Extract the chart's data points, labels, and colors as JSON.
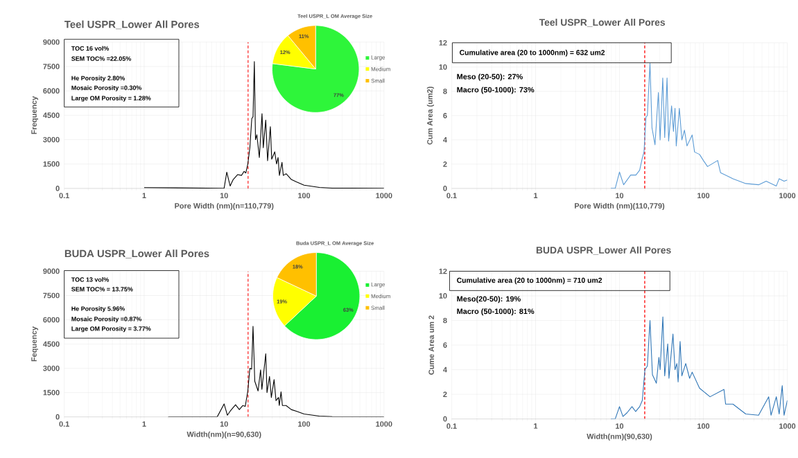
{
  "chart_data": [
    {
      "type": "line",
      "title": "Teel USPR_Lower All Pores",
      "xlabel": "Pore Width (nm)(n=110,779)",
      "ylabel": "Frequency",
      "log": "x",
      "grid": true,
      "xlim": [
        0.1,
        1000
      ],
      "xticks": [
        0.1,
        1,
        10,
        100,
        1000
      ],
      "ylim": [
        0,
        9000
      ],
      "yticks": [
        0,
        1500,
        3000,
        4500,
        6000,
        7500,
        9000
      ],
      "color": "#000000",
      "x": [
        1,
        9.5,
        10,
        10.8,
        11.9,
        13,
        14.8,
        16.5,
        17.8,
        18.7,
        19.8,
        21,
        22.2,
        23,
        23.9,
        24.7,
        25.7,
        27.6,
        29.8,
        30.9,
        33.2,
        35,
        37.9,
        39.4,
        43,
        45.3,
        47.3,
        49.2,
        53,
        55,
        59.9,
        69.3,
        80.3,
        100,
        156,
        225,
        1000
      ],
      "values": [
        50,
        10,
        0,
        1000,
        150,
        550,
        850,
        800,
        1050,
        950,
        1500,
        2500,
        4300,
        4400,
        7800,
        3000,
        3300,
        1900,
        4600,
        2500,
        4200,
        1700,
        3800,
        1800,
        2250,
        1500,
        1900,
        800,
        1600,
        800,
        900,
        550,
        400,
        200,
        60,
        20,
        0
      ],
      "ref_lines": [
        {
          "axis": "x",
          "value": 20,
          "color": "#ff0000",
          "line_style": "dashed"
        }
      ],
      "annotations": [
        "TOC 16 vol%",
        "SEM TOC% =22.05%",
        "He Porosity 2.80%",
        "Mosaic Porosity =0.30%",
        "Large OM Porosity = 1.28%"
      ]
    },
    {
      "type": "pie",
      "title": "Teel USPR_L OM Average Size",
      "categories": [
        "Large",
        "Medium",
        "Small"
      ],
      "values": [
        77,
        12,
        11
      ],
      "value_labels": [
        "77%",
        "12%",
        "11%"
      ],
      "colors": [
        "#2ef53a",
        "#ffff00",
        "#ffc000"
      ],
      "legend": "right"
    },
    {
      "type": "line",
      "title": "Teel USPR_Lower All Pores",
      "xlabel": "Pore Width (nm)(110,779)",
      "ylabel": "Cum Area (um2)",
      "log": "x",
      "grid": true,
      "xlim": [
        0.1,
        1000
      ],
      "xticks": [
        0.1,
        1,
        10,
        100,
        1000
      ],
      "ylim": [
        0,
        12
      ],
      "yticks": [
        0,
        2,
        4,
        6,
        8,
        10,
        12
      ],
      "color": "#5b9bd5",
      "x": [
        7.9,
        8.9,
        10,
        11.2,
        13.6,
        15.7,
        17.4,
        18.7,
        19.6,
        20.7,
        21.5,
        23.1,
        24.4,
        26.5,
        29.1,
        30.5,
        32.8,
        34.6,
        36.9,
        38.5,
        41.8,
        44,
        45.9,
        47.5,
        51.7,
        55.4,
        59.5,
        63.8,
        73.5,
        78.5,
        90,
        100,
        112,
        148,
        160,
        225,
        320,
        455,
        560,
        740,
        800,
        915,
        1000
      ],
      "values": [
        0,
        0,
        1.35,
        0.3,
        1.1,
        1.1,
        1.5,
        2.5,
        3.0,
        5.9,
        6.0,
        10.3,
        5.0,
        3.6,
        7.9,
        4.0,
        9.1,
        4.2,
        9.1,
        3.9,
        6.8,
        4.7,
        6.6,
        3.5,
        6.6,
        4.0,
        4.8,
        3.5,
        4.4,
        3.0,
        2.8,
        2.3,
        1.8,
        2.3,
        1.3,
        0.8,
        0.4,
        0.3,
        0.6,
        0.2,
        0.8,
        0.6,
        0.7
      ],
      "ref_lines": [
        {
          "axis": "x",
          "value": 20,
          "color": "#ff0000",
          "line_style": "dashed"
        }
      ],
      "annotations": [
        "Cumulative area (20 to 1000nm) = 632 um2",
        "Meso (20-50): 27%",
        "Macro (50-1000): 73%"
      ]
    },
    {
      "type": "line",
      "title": "BUDA USPR_Lower All Pores",
      "xlabel": "Width(nm)(n=90,630)",
      "ylabel": "Fequency",
      "log": "x",
      "grid": true,
      "xlim": [
        0.1,
        1000
      ],
      "xticks": [
        0.1,
        1,
        10,
        100,
        1000
      ],
      "ylim": [
        0,
        9000
      ],
      "yticks": [
        0,
        1500,
        3000,
        4500,
        6000,
        7500,
        9000
      ],
      "color": "#000000",
      "x": [
        2,
        8.2,
        10,
        11,
        11.9,
        13.9,
        15.5,
        17.1,
        18.4,
        19.8,
        21,
        22.1,
        23,
        24.2,
        26.6,
        28.6,
        29.7,
        33.2,
        34.4,
        37,
        39,
        42.2,
        44.6,
        47.9,
        49,
        51.6,
        53.6,
        59.6,
        69.3,
        80.3,
        100,
        155,
        225,
        1000
      ],
      "values": [
        0,
        0,
        800,
        100,
        350,
        750,
        450,
        700,
        650,
        1600,
        3000,
        2950,
        5600,
        2200,
        1600,
        2900,
        1700,
        3900,
        1500,
        2500,
        1200,
        2300,
        1000,
        1200,
        700,
        1550,
        700,
        700,
        450,
        350,
        180,
        50,
        10,
        0
      ],
      "ref_lines": [
        {
          "axis": "x",
          "value": 20,
          "color": "#ff0000",
          "line_style": "dashed"
        }
      ],
      "annotations": [
        "TOC 13 vol%",
        "SEM TOC% = 13.75%",
        "He Porosity 5.96%",
        "Mosaic Porosity =0.87%",
        "Large OM Porosity = 3.77%"
      ]
    },
    {
      "type": "pie",
      "title": "Buda USPR_L OM Average Size",
      "categories": [
        "Large",
        "Medium",
        "Small"
      ],
      "values": [
        63,
        19,
        18
      ],
      "value_labels": [
        "63%",
        "19%",
        "18%"
      ],
      "colors": [
        "#19f032",
        "#ffff00",
        "#ffc000"
      ],
      "legend": "right"
    },
    {
      "type": "line",
      "title": "BUDA USPR_Lower All Pores",
      "xlabel": "Width(nm)(90,630)",
      "ylabel": "Cume Area um 2",
      "log": "x",
      "grid": true,
      "xlim": [
        0.1,
        1000
      ],
      "xticks": [
        0.1,
        1,
        10,
        100,
        1000
      ],
      "ylim": [
        0,
        12
      ],
      "yticks": [
        0,
        2,
        4,
        6,
        8,
        10,
        12
      ],
      "color": "#2e75b6",
      "x": [
        7.9,
        8.9,
        10,
        11,
        12.3,
        14.1,
        15.6,
        17.4,
        18.7,
        20.1,
        21.5,
        23.1,
        24.7,
        27.5,
        29.5,
        30.5,
        32.9,
        34.6,
        37.6,
        38.9,
        43.4,
        45.9,
        48.3,
        50,
        52.8,
        55.4,
        61.6,
        68.5,
        73.5,
        90,
        120,
        176,
        184,
        225,
        320,
        455,
        600,
        640,
        740,
        800,
        870,
        915,
        1000
      ],
      "values": [
        0,
        0,
        1.0,
        0.2,
        0.5,
        1.0,
        0.6,
        1.0,
        1.5,
        4.0,
        4.3,
        8.0,
        3.6,
        2.9,
        5.0,
        4.0,
        8.3,
        3.5,
        6.1,
        3.3,
        6.9,
        4.0,
        4.5,
        3.0,
        6.3,
        3.5,
        4.5,
        3.3,
        3.8,
        2.5,
        1.8,
        2.4,
        1.2,
        1.2,
        0.4,
        0.3,
        1.8,
        0.3,
        1.8,
        0.4,
        2.7,
        0.3,
        1.5
      ],
      "ref_lines": [
        {
          "axis": "x",
          "value": 20,
          "color": "#ff0000",
          "line_style": "dashed"
        }
      ],
      "annotations": [
        "Cumulative area (20 to 1000nm) = 710 um2",
        "Meso(20-50): 19%",
        "Macro (50-1000): 81%"
      ]
    }
  ]
}
